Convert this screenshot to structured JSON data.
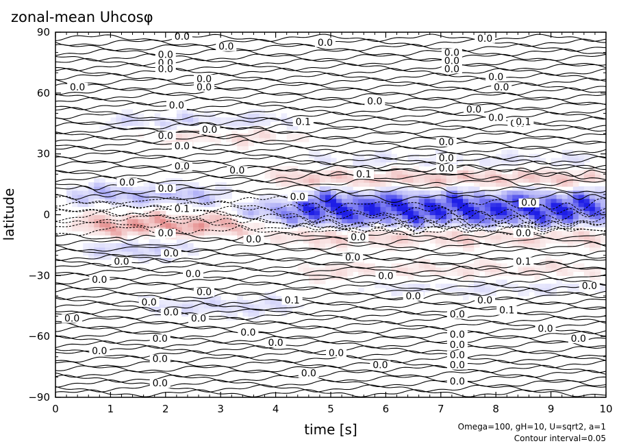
{
  "chart_data": {
    "type": "heatmap",
    "title": "zonal-mean Uhcosφ",
    "xlabel": "time [s]",
    "ylabel": "latitude",
    "xlim": [
      0,
      10
    ],
    "ylim": [
      -90,
      90
    ],
    "x_ticks": [
      "0",
      "1",
      "2",
      "3",
      "4",
      "5",
      "6",
      "7",
      "8",
      "9",
      "10"
    ],
    "y_ticks": [
      "90",
      "60",
      "30",
      "0",
      "−30",
      "−60",
      "−90"
    ],
    "y_tick_values": [
      90,
      60,
      30,
      0,
      -30,
      -60,
      -90
    ],
    "footnote": [
      "Omega=100, gH=10, U=sqrt2, a=1",
      "Contour interval=0.05"
    ],
    "contour_interval": 0.05,
    "colors": {
      "positive": "#d23c3c",
      "negative": "#1e1ee6",
      "contour": "#000000",
      "background": "#ffffff"
    },
    "bands": [
      {
        "lat": 3,
        "t_start": 4.3,
        "t_end": 10.0,
        "value": -0.35
      },
      {
        "lat": 1,
        "t_start": 3.2,
        "t_end": 4.3,
        "value": -0.12
      },
      {
        "lat": 18,
        "t_start": 4.0,
        "t_end": 10.0,
        "value": 0.12
      },
      {
        "lat": -10,
        "t_start": 4.0,
        "t_end": 10.0,
        "value": 0.1
      },
      {
        "lat": -28,
        "t_start": 4.5,
        "t_end": 10.0,
        "value": 0.06
      },
      {
        "lat": -35,
        "t_start": 5.5,
        "t_end": 10.0,
        "value": -0.05
      },
      {
        "lat": 26,
        "t_start": 4.5,
        "t_end": 10.0,
        "value": -0.05
      },
      {
        "lat": 45,
        "t_start": 1.0,
        "t_end": 4.5,
        "value": -0.08
      },
      {
        "lat": 40,
        "t_start": 1.5,
        "t_end": 4.5,
        "value": 0.08
      },
      {
        "lat": -5,
        "t_start": 0.5,
        "t_end": 3.5,
        "value": 0.18
      },
      {
        "lat": 10,
        "t_start": 0.3,
        "t_end": 3.0,
        "value": -0.12
      },
      {
        "lat": -45,
        "t_start": 1.5,
        "t_end": 4.5,
        "value": -0.06
      },
      {
        "lat": -17,
        "t_start": 0.5,
        "t_end": 2.5,
        "value": -0.08
      }
    ],
    "contour_labels": [
      {
        "t": 2.3,
        "lat": 87,
        "text": "0.0"
      },
      {
        "t": 3.1,
        "lat": 82,
        "text": "0.0"
      },
      {
        "t": 4.9,
        "lat": 84,
        "text": "0.0"
      },
      {
        "t": 7.8,
        "lat": 86,
        "text": "0.0"
      },
      {
        "t": 2.0,
        "lat": 78,
        "text": "0.0"
      },
      {
        "t": 7.2,
        "lat": 79,
        "text": "0.0"
      },
      {
        "t": 2.0,
        "lat": 74,
        "text": "0.0"
      },
      {
        "t": 7.2,
        "lat": 75,
        "text": "0.0"
      },
      {
        "t": 2.0,
        "lat": 71,
        "text": "0.0"
      },
      {
        "t": 7.2,
        "lat": 71,
        "text": "0.0"
      },
      {
        "t": 8.0,
        "lat": 67,
        "text": "0.0"
      },
      {
        "t": 2.7,
        "lat": 66,
        "text": "0.0"
      },
      {
        "t": 0.4,
        "lat": 62,
        "text": "0.0"
      },
      {
        "t": 2.7,
        "lat": 62,
        "text": "0.0"
      },
      {
        "t": 8.1,
        "lat": 62,
        "text": "0.0"
      },
      {
        "t": 5.8,
        "lat": 55,
        "text": "0.0"
      },
      {
        "t": 2.2,
        "lat": 53,
        "text": "0.0"
      },
      {
        "t": 7.6,
        "lat": 51,
        "text": "0.0"
      },
      {
        "t": 8.0,
        "lat": 47,
        "text": "0.0"
      },
      {
        "t": 8.4,
        "lat": 44,
        "text": "0.0"
      },
      {
        "t": 2.8,
        "lat": 41,
        "text": "0.0"
      },
      {
        "t": 2.0,
        "lat": 38,
        "text": "0.0"
      },
      {
        "t": 7.1,
        "lat": 35,
        "text": "0.0"
      },
      {
        "t": 2.3,
        "lat": 33,
        "text": "0.0"
      },
      {
        "t": 7.1,
        "lat": 27,
        "text": "0.0"
      },
      {
        "t": 2.3,
        "lat": 23,
        "text": "0.0"
      },
      {
        "t": 7.1,
        "lat": 22,
        "text": "0.0"
      },
      {
        "t": 5.6,
        "lat": 19,
        "text": "0.1"
      },
      {
        "t": 4.5,
        "lat": 45,
        "text": "0.1"
      },
      {
        "t": 8.5,
        "lat": 45,
        "text": "0.1"
      },
      {
        "t": 3.3,
        "lat": 21,
        "text": "0.0"
      },
      {
        "t": 1.3,
        "lat": 15,
        "text": "0.0"
      },
      {
        "t": 2.0,
        "lat": 12,
        "text": "0.0"
      },
      {
        "t": 4.4,
        "lat": 8,
        "text": "0.0"
      },
      {
        "t": 2.3,
        "lat": 2,
        "text": "0.1"
      },
      {
        "t": 8.6,
        "lat": 5,
        "text": "0.0"
      },
      {
        "t": 2.0,
        "lat": -10,
        "text": "0.0"
      },
      {
        "t": 3.6,
        "lat": -13,
        "text": "0.0"
      },
      {
        "t": 5.5,
        "lat": -12,
        "text": "0.0"
      },
      {
        "t": 8.5,
        "lat": -10,
        "text": "0.0"
      },
      {
        "t": 2.1,
        "lat": -20,
        "text": "0.0"
      },
      {
        "t": 5.4,
        "lat": -22,
        "text": "0.0"
      },
      {
        "t": 1.2,
        "lat": -24,
        "text": "0.0"
      },
      {
        "t": 8.5,
        "lat": -24,
        "text": "0.1"
      },
      {
        "t": 2.5,
        "lat": -30,
        "text": "0.0"
      },
      {
        "t": 6.0,
        "lat": -31,
        "text": "0.0"
      },
      {
        "t": 0.8,
        "lat": -33,
        "text": "0.0"
      },
      {
        "t": 9.7,
        "lat": -36,
        "text": "0.0"
      },
      {
        "t": 2.7,
        "lat": -39,
        "text": "0.0"
      },
      {
        "t": 6.5,
        "lat": -41,
        "text": "0.0"
      },
      {
        "t": 4.3,
        "lat": -43,
        "text": "0.1"
      },
      {
        "t": 7.8,
        "lat": -43,
        "text": "0.0"
      },
      {
        "t": 1.7,
        "lat": -44,
        "text": "0.0"
      },
      {
        "t": 8.2,
        "lat": -48,
        "text": "0.1"
      },
      {
        "t": 2.1,
        "lat": -49,
        "text": "0.0"
      },
      {
        "t": 7.3,
        "lat": -50,
        "text": "0.0"
      },
      {
        "t": 2.6,
        "lat": -52,
        "text": "0.0"
      },
      {
        "t": 0.3,
        "lat": -52,
        "text": "0.0"
      },
      {
        "t": 8.9,
        "lat": -57,
        "text": "0.0"
      },
      {
        "t": 3.5,
        "lat": -59,
        "text": "0.0"
      },
      {
        "t": 7.3,
        "lat": -60,
        "text": "0.0"
      },
      {
        "t": 9.5,
        "lat": -62,
        "text": "0.0"
      },
      {
        "t": 1.9,
        "lat": -62,
        "text": "0.0"
      },
      {
        "t": 4.0,
        "lat": -64,
        "text": "0.0"
      },
      {
        "t": 7.3,
        "lat": -65,
        "text": "0.0"
      },
      {
        "t": 0.8,
        "lat": -68,
        "text": "0.0"
      },
      {
        "t": 5.1,
        "lat": -69,
        "text": "0.0"
      },
      {
        "t": 7.3,
        "lat": -70,
        "text": "0.0"
      },
      {
        "t": 1.9,
        "lat": -72,
        "text": "0.0"
      },
      {
        "t": 5.9,
        "lat": -75,
        "text": "0.0"
      },
      {
        "t": 7.3,
        "lat": -75,
        "text": "0.0"
      },
      {
        "t": 4.6,
        "lat": -79,
        "text": "0.0"
      },
      {
        "t": 7.3,
        "lat": -83,
        "text": "0.0"
      },
      {
        "t": 1.9,
        "lat": -84,
        "text": "0.0"
      }
    ]
  }
}
